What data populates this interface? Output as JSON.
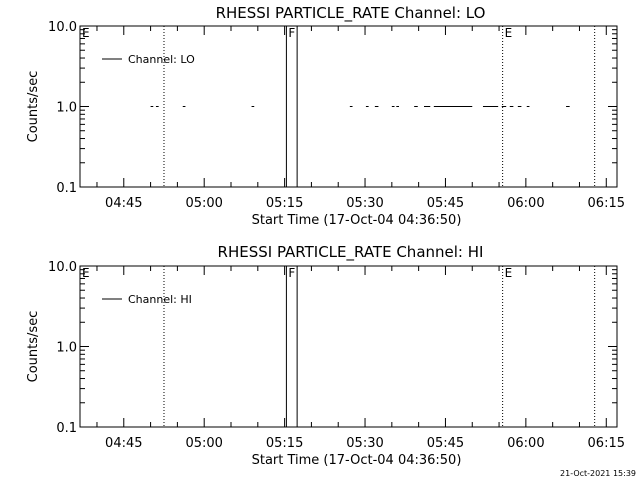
{
  "timestamp": "21-Oct-2021 15:39",
  "chart_data": [
    {
      "type": "line",
      "title": "RHESSI PARTICLE_RATE Channel: LO",
      "xlabel": "Start Time (17-Oct-04 04:36:50)",
      "ylabel": "Counts/sec",
      "y_scale": "log",
      "ylim": [
        0.1,
        10.0
      ],
      "yticks": [
        "0.1",
        "1.0",
        "10.0"
      ],
      "xlim": [
        "04:36:50",
        "06:17:00"
      ],
      "xticks": [
        "04:45",
        "05:00",
        "05:15",
        "05:30",
        "05:45",
        "06:00",
        "06:15"
      ],
      "legend": {
        "label": "Channel: LO",
        "position": "top-left"
      },
      "grid": false,
      "markers": [
        {
          "label": "E",
          "time": "04:36:50",
          "style": "none"
        },
        {
          "label": "",
          "time": "04:52:30",
          "style": "dotted"
        },
        {
          "label": "F",
          "time": "05:15:20",
          "style": "solid"
        },
        {
          "label": "",
          "time": "05:17:20",
          "style": "solid"
        },
        {
          "label": "E",
          "time": "05:55:40",
          "style": "dotted"
        },
        {
          "label": "",
          "time": "06:12:50",
          "style": "dotted"
        }
      ],
      "series": [
        {
          "values": [
            {
              "start": "04:50:00",
              "end": "04:50:30",
              "y": 1.0
            },
            {
              "start": "04:51:00",
              "end": "04:51:30",
              "y": 1.0
            },
            {
              "start": "04:56:00",
              "end": "04:56:30",
              "y": 1.0
            },
            {
              "start": "05:08:50",
              "end": "05:09:20",
              "y": 1.0
            },
            {
              "start": "05:27:10",
              "end": "05:27:40",
              "y": 1.0
            },
            {
              "start": "05:30:10",
              "end": "05:30:40",
              "y": 1.0
            },
            {
              "start": "05:31:50",
              "end": "05:32:30",
              "y": 1.0
            },
            {
              "start": "05:35:00",
              "end": "05:35:30",
              "y": 1.0
            },
            {
              "start": "05:35:50",
              "end": "05:36:20",
              "y": 1.0
            },
            {
              "start": "05:39:10",
              "end": "05:39:50",
              "y": 1.0
            },
            {
              "start": "05:41:00",
              "end": "05:42:10",
              "y": 1.0
            },
            {
              "start": "05:42:50",
              "end": "05:50:00",
              "y": 1.0
            },
            {
              "start": "05:52:00",
              "end": "05:54:50",
              "y": 1.0
            },
            {
              "start": "05:55:30",
              "end": "05:56:20",
              "y": 1.0
            },
            {
              "start": "05:57:00",
              "end": "05:57:40",
              "y": 1.0
            },
            {
              "start": "05:58:30",
              "end": "05:59:10",
              "y": 1.0
            },
            {
              "start": "06:00:10",
              "end": "06:00:40",
              "y": 1.0
            },
            {
              "start": "06:07:30",
              "end": "06:08:10",
              "y": 1.0
            }
          ]
        }
      ]
    },
    {
      "type": "line",
      "title": "RHESSI PARTICLE_RATE Channel: HI",
      "xlabel": "Start Time (17-Oct-04 04:36:50)",
      "ylabel": "Counts/sec",
      "y_scale": "log",
      "ylim": [
        0.1,
        10.0
      ],
      "yticks": [
        "0.1",
        "1.0",
        "10.0"
      ],
      "xlim": [
        "04:36:50",
        "06:17:00"
      ],
      "xticks": [
        "04:45",
        "05:00",
        "05:15",
        "05:30",
        "05:45",
        "06:00",
        "06:15"
      ],
      "legend": {
        "label": "Channel: HI",
        "position": "top-left"
      },
      "grid": false,
      "markers": [
        {
          "label": "E",
          "time": "04:36:50",
          "style": "none"
        },
        {
          "label": "",
          "time": "04:52:30",
          "style": "dotted"
        },
        {
          "label": "F",
          "time": "05:15:20",
          "style": "solid"
        },
        {
          "label": "",
          "time": "05:17:20",
          "style": "solid"
        },
        {
          "label": "E",
          "time": "05:55:40",
          "style": "dotted"
        },
        {
          "label": "",
          "time": "06:12:50",
          "style": "dotted"
        }
      ],
      "series": [
        {
          "values": []
        }
      ]
    }
  ]
}
